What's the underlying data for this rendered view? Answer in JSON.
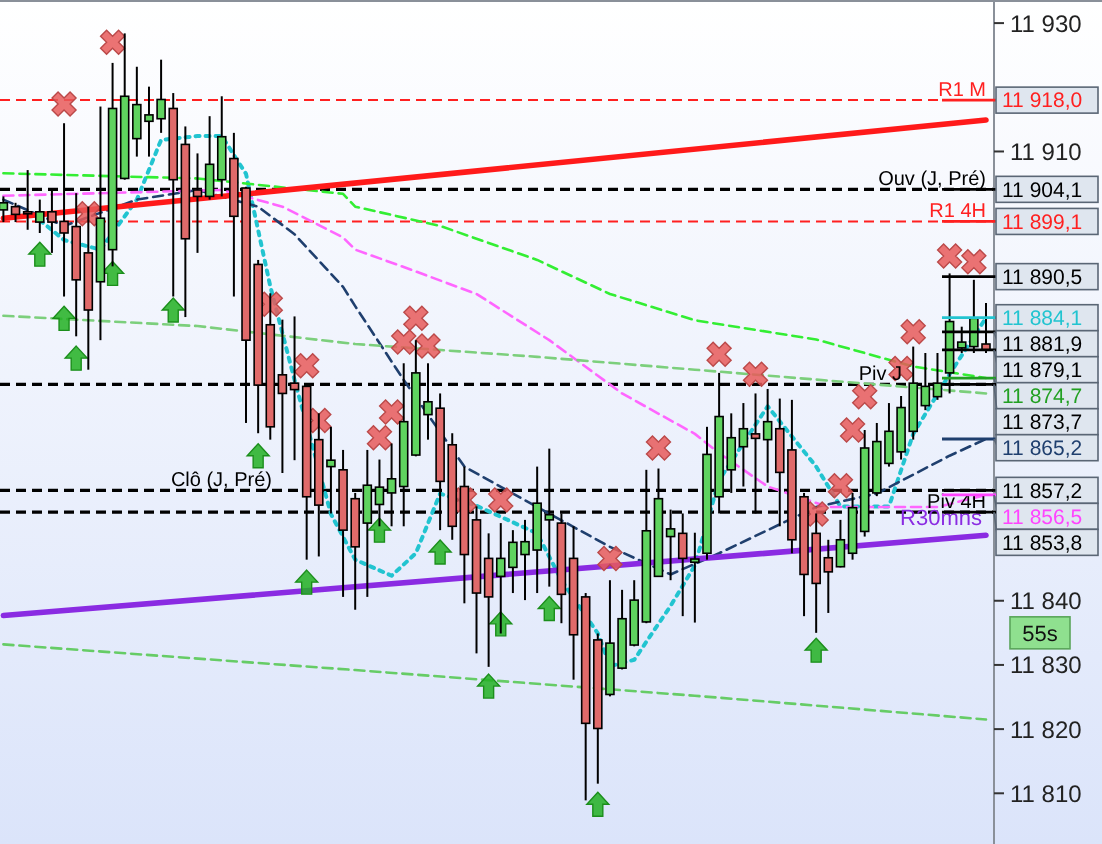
{
  "chart_data": {
    "type": "candlestick",
    "categories": [
      null,
      null,
      null,
      null,
      null,
      null,
      null,
      null,
      null,
      null,
      null,
      null,
      null,
      null,
      null,
      null,
      null,
      null,
      null,
      null,
      null,
      null,
      null,
      null,
      null,
      null,
      null,
      null,
      null,
      null,
      null,
      null,
      null,
      null,
      null,
      null,
      null,
      null,
      null,
      null,
      null,
      null,
      null,
      null,
      null,
      null,
      null,
      null,
      null,
      null,
      null,
      null,
      null,
      null,
      null,
      null,
      null,
      null,
      null,
      null,
      null,
      null,
      null,
      null,
      null,
      null,
      null,
      null,
      null,
      null,
      null,
      null,
      null,
      null,
      null,
      null,
      null,
      null,
      null,
      null,
      null,
      null
    ],
    "ohlc": [
      [
        11900.9,
        11903,
        11899,
        11902
      ],
      [
        11901.4,
        11902,
        11899,
        11900.2
      ],
      [
        11900.6,
        11907.1,
        11897.8,
        11900.4
      ],
      [
        11899,
        11902.5,
        11897.3,
        11900.6
      ],
      [
        11900.6,
        11904,
        11894.2,
        11899
      ],
      [
        11899.1,
        11914.4,
        11887.4,
        11897.3
      ],
      [
        11898.3,
        11903.5,
        11881.2,
        11890
      ],
      [
        11894.2,
        11901.4,
        11876,
        11885.3
      ],
      [
        11889.7,
        11917,
        11880.6,
        11899.6
      ],
      [
        11894.7,
        11923.8,
        11892.1,
        11916.7
      ],
      [
        11905.8,
        11928.4,
        11905.6,
        11918.6
      ],
      [
        11912,
        11923.2,
        11909.2,
        11917.3
      ],
      [
        11914.7,
        11920.1,
        11909.2,
        11915.7
      ],
      [
        11915.1,
        11924.3,
        11912.9,
        11918.1
      ],
      [
        11916.7,
        11919.1,
        11887.4,
        11905.6
      ],
      [
        11911.1,
        11913.9,
        11884.2,
        11896.4
      ],
      [
        11904,
        11909.7,
        11894.2,
        11903
      ],
      [
        11903,
        11915.5,
        11902.5,
        11908
      ],
      [
        11905.6,
        11918.6,
        11903,
        11912.3
      ],
      [
        11908.9,
        11912.9,
        11887.4,
        11899.9
      ],
      [
        11904.3,
        11904.5,
        11867.7,
        11880.6
      ],
      [
        11892.4,
        11893.1,
        11866.1,
        11873.6
      ],
      [
        11883,
        11887.9,
        11865.1,
        11867.1
      ],
      [
        11875.2,
        11883.8,
        11859.9,
        11872.3
      ],
      [
        11873.9,
        11884.3,
        11861.9,
        11872.9
      ],
      [
        11873.4,
        11873.9,
        11846.4,
        11856.2
      ],
      [
        11865.1,
        11869.2,
        11846.9,
        11854.9
      ],
      [
        11860.9,
        11867.1,
        11853.6,
        11861.9
      ],
      [
        11860.4,
        11863.5,
        11840.6,
        11851
      ],
      [
        11855.9,
        11856.8,
        11838.6,
        11848.4
      ],
      [
        11852.1,
        11863.5,
        11840.6,
        11858
      ],
      [
        11855,
        11862,
        11851.6,
        11857.7
      ],
      [
        11856.8,
        11864.5,
        11851.6,
        11859
      ],
      [
        11857.8,
        11877,
        11851.6,
        11867.9
      ],
      [
        11862.7,
        11880.6,
        11862.5,
        11875.5
      ],
      [
        11869,
        11877,
        11865.1,
        11871
      ],
      [
        11870,
        11872.3,
        11851,
        11858.6
      ],
      [
        11864.3,
        11866.1,
        11849.5,
        11851.6
      ],
      [
        11857.8,
        11860.9,
        11839.6,
        11847.2
      ],
      [
        11852.6,
        11854.7,
        11831.8,
        11841.2
      ],
      [
        11846.6,
        11850.5,
        11829.7,
        11840.6
      ],
      [
        11843.8,
        11852.1,
        11834.9,
        11846.6
      ],
      [
        11845.2,
        11851,
        11841.2,
        11849.1
      ],
      [
        11847.2,
        11852.6,
        11840.1,
        11849.2
      ],
      [
        11847.9,
        11860.9,
        11841.2,
        11855.2
      ],
      [
        11852.6,
        11863.7,
        11842.2,
        11853.4
      ],
      [
        11852.1,
        11853.6,
        11836.5,
        11841
      ],
      [
        11846.6,
        11851.6,
        11827.7,
        11834.7
      ],
      [
        11840.6,
        11841.2,
        11808.9,
        11820.9
      ],
      [
        11833.9,
        11834.9,
        11811.5,
        11820.1
      ],
      [
        11825.4,
        11843.2,
        11825.1,
        11833.4
      ],
      [
        11829.5,
        11841.7,
        11829.3,
        11837.2
      ],
      [
        11833.1,
        11843.2,
        11832.9,
        11840.1
      ],
      [
        11836.7,
        11860.4,
        11836.5,
        11850.9
      ],
      [
        11843.8,
        11860.6,
        11843.8,
        11855.9
      ],
      [
        11850,
        11854.2,
        11843.2,
        11851.2
      ],
      [
        11850.5,
        11853.6,
        11837.6,
        11846.6
      ],
      [
        11846,
        11850.6,
        11836.6,
        11846.5
      ],
      [
        11847.4,
        11867.1,
        11846.4,
        11862.8
      ],
      [
        11856.2,
        11875.5,
        11853.6,
        11868.7
      ],
      [
        11860.4,
        11869.2,
        11856.8,
        11865.4
      ],
      [
        11864,
        11870.8,
        11857.8,
        11866.8
      ],
      [
        11866,
        11872.3,
        11853.6,
        11865.3
      ],
      [
        11865.1,
        11873,
        11858.4,
        11867.9
      ],
      [
        11866.8,
        11871.5,
        11851.6,
        11860
      ],
      [
        11863.5,
        11871.3,
        11847.4,
        11849.5
      ],
      [
        11856.2,
        11856.8,
        11837.6,
        11844.1
      ],
      [
        11850.5,
        11853.6,
        11835,
        11842.7
      ],
      [
        11846.7,
        11849.5,
        11838.1,
        11844.5
      ],
      [
        11845.3,
        11852.6,
        11845.2,
        11849.5
      ],
      [
        11847.4,
        11856.8,
        11846.4,
        11854.5
      ],
      [
        11850.8,
        11866.6,
        11850,
        11863.8
      ],
      [
        11856.8,
        11867.7,
        11856.3,
        11864.8
      ],
      [
        11861.4,
        11870.8,
        11860.9,
        11866.4
      ],
      [
        11863.2,
        11871.9,
        11862,
        11870.1
      ],
      [
        11866.4,
        11879.6,
        11865.1,
        11873.9
      ],
      [
        11870.4,
        11878.6,
        11869.7,
        11873.4
      ],
      [
        11871.8,
        11878.6,
        11871.3,
        11873.9
      ],
      [
        11875.5,
        11891,
        11872.3,
        11883.5
      ],
      [
        11879.4,
        11882.7,
        11878.6,
        11880.3
      ],
      [
        11879.6,
        11890,
        11878.6,
        11884
      ],
      [
        11880,
        11886.4,
        11878.6,
        11879.1
      ]
    ],
    "series": [
      {
        "type": "line",
        "color": "#22c4d0",
        "line_style": "dotted",
        "values": [
          null,
          null,
          null,
          11899.3,
          null,
          11896.2,
          null,
          null,
          11894.7,
          null,
          null,
          11902.5,
          null,
          11911.8,
          null,
          null,
          11912.4,
          null,
          11912.4,
          null,
          11906.5,
          null,
          11889.0,
          null,
          11874.4,
          null,
          null,
          11853.5,
          null,
          11846.4,
          null,
          null,
          11843.9,
          null,
          11847.4,
          null,
          11856.7,
          null,
          null,
          11854.8,
          null,
          null,
          null,
          null,
          11850.5,
          null,
          11843.2,
          null,
          null,
          11834.9,
          11829.8,
          null,
          11830.8,
          null,
          null,
          11839.2,
          null,
          11845.5,
          null,
          11858.8,
          null,
          null,
          null,
          11870.3,
          null,
          null,
          null,
          11860.9,
          null,
          11854.7,
          null,
          null,
          null,
          11854.7,
          null,
          11866.0,
          null,
          null,
          11875.3,
          null,
          null,
          11884.1
        ]
      },
      {
        "type": "line",
        "color": "#1f3f6e",
        "line_style": "dashed",
        "values": [
          11902.5,
          null,
          null,
          null,
          null,
          11898.4,
          null,
          null,
          null,
          null,
          null,
          11902.5,
          null,
          null,
          null,
          null,
          11904.0,
          null,
          null,
          null,
          null,
          11901.4,
          null,
          null,
          11897.1,
          null,
          null,
          null,
          11888.9,
          11885.9,
          null,
          null,
          null,
          11874.4,
          null,
          null,
          null,
          null,
          11860.9,
          null,
          null,
          null,
          null,
          null,
          11854.6,
          null,
          null,
          null,
          null,
          null,
          11848.4,
          null,
          null,
          null,
          null,
          11844.1,
          null,
          null,
          null,
          11847.4,
          null,
          null,
          null,
          null,
          null,
          null,
          null,
          11854.6,
          null,
          null,
          null,
          null,
          11856.7,
          null,
          null,
          null,
          null,
          null,
          11862.6,
          null,
          null,
          11865.2
        ]
      },
      {
        "type": "line",
        "color": "#ff66ff",
        "line_style": "dashed",
        "values": [
          11903.1,
          null,
          null,
          null,
          null,
          null,
          null,
          null,
          null,
          null,
          null,
          null,
          null,
          null,
          null,
          null,
          null,
          null,
          11904.0,
          null,
          null,
          null,
          null,
          11901.4,
          null,
          null,
          null,
          null,
          11896.6,
          11894.7,
          null,
          null,
          null,
          11892.0,
          null,
          null,
          null,
          null,
          null,
          11887.8,
          null,
          null,
          null,
          null,
          null,
          11880.6,
          null,
          null,
          null,
          null,
          null,
          11872.3,
          null,
          null,
          null,
          null,
          null,
          11866.0,
          null,
          11863.0,
          null,
          null,
          null,
          11857.8,
          null,
          null,
          null,
          null,
          11854.6,
          null,
          null,
          null,
          null,
          null,
          null,
          null,
          null,
          11854.6,
          null,
          null,
          null,
          11856.5
        ]
      },
      {
        "type": "line",
        "color": "#33ee33",
        "line_style": "dashed",
        "values": [
          11906.6,
          null,
          null,
          null,
          null,
          null,
          null,
          null,
          null,
          null,
          null,
          null,
          null,
          null,
          null,
          null,
          11905.8,
          null,
          null,
          null,
          null,
          null,
          null,
          null,
          null,
          null,
          null,
          null,
          11903.4,
          11901.4,
          null,
          null,
          null,
          null,
          null,
          null,
          11898.4,
          null,
          null,
          null,
          null,
          null,
          null,
          null,
          11893.1,
          null,
          null,
          null,
          null,
          null,
          11887.8,
          null,
          null,
          null,
          null,
          null,
          null,
          11883.7,
          null,
          null,
          null,
          null,
          null,
          null,
          null,
          null,
          null,
          11880.7,
          null,
          null,
          null,
          null,
          null,
          null,
          null,
          11876.5,
          null,
          null,
          null,
          null,
          null,
          11874.7
        ]
      },
      {
        "type": "line",
        "color": "#7ccf7c",
        "line_style": "dashed",
        "values": [
          11884.4,
          null,
          null,
          null,
          null,
          null,
          null,
          null,
          null,
          null,
          null,
          null,
          null,
          null,
          null,
          null,
          11882.8,
          null,
          null,
          null,
          null,
          null,
          null,
          null,
          null,
          null,
          null,
          null,
          null,
          11880.0,
          null,
          null,
          null,
          null,
          null,
          null,
          null,
          null,
          null,
          null,
          null,
          null,
          null,
          null,
          11878.0,
          null,
          null,
          null,
          null,
          null,
          null,
          null,
          null,
          null,
          null,
          null,
          null,
          11876.0,
          null,
          null,
          null,
          null,
          null,
          null,
          null,
          null,
          null,
          null,
          null,
          null,
          null,
          null,
          null,
          null,
          null,
          null,
          null,
          null,
          null,
          null,
          null,
          11872.3
        ]
      },
      {
        "type": "line",
        "color": "#66cc66",
        "line_style": "dashed",
        "values": [
          11833.2,
          null,
          null,
          null,
          null,
          null,
          null,
          null,
          null,
          null,
          null,
          null,
          null,
          null,
          null,
          null,
          null,
          null,
          null,
          null,
          null,
          null,
          null,
          null,
          null,
          null,
          null,
          null,
          null,
          11829.2,
          null,
          null,
          null,
          null,
          null,
          null,
          null,
          null,
          null,
          null,
          null,
          null,
          null,
          null,
          null,
          null,
          null,
          null,
          null,
          null,
          null,
          null,
          null,
          null,
          null,
          null,
          null,
          11825.2,
          null,
          null,
          null,
          null,
          null,
          null,
          null,
          null,
          null,
          null,
          null,
          null,
          null,
          null,
          null,
          null,
          null,
          null,
          null,
          null,
          null,
          null,
          null,
          11821.5
        ]
      },
      {
        "type": "line",
        "color": "#ff1a1a",
        "line_style": "solid",
        "values": [
          11899.6,
          null,
          null,
          null,
          null,
          null,
          null,
          null,
          null,
          null,
          null,
          null,
          null,
          null,
          null,
          null,
          null,
          null,
          null,
          null,
          null,
          null,
          null,
          null,
          null,
          null,
          null,
          null,
          null,
          null,
          null,
          null,
          null,
          null,
          null,
          null,
          null,
          null,
          null,
          null,
          null,
          null,
          null,
          null,
          null,
          null,
          null,
          null,
          null,
          null,
          null,
          null,
          null,
          null,
          null,
          null,
          null,
          null,
          null,
          null,
          null,
          null,
          null,
          null,
          null,
          null,
          null,
          null,
          null,
          null,
          null,
          null,
          null,
          null,
          null,
          null,
          null,
          null,
          null,
          null,
          null,
          11914.9
        ]
      },
      {
        "type": "line",
        "name": "R30mns",
        "color": "#8a2be2",
        "line_style": "solid",
        "values": [
          11837.7,
          null,
          null,
          null,
          null,
          null,
          null,
          null,
          null,
          null,
          null,
          null,
          null,
          null,
          null,
          null,
          null,
          null,
          null,
          null,
          null,
          null,
          null,
          null,
          null,
          null,
          null,
          null,
          null,
          null,
          null,
          null,
          null,
          null,
          null,
          null,
          null,
          null,
          null,
          null,
          null,
          null,
          null,
          null,
          null,
          null,
          null,
          null,
          null,
          null,
          null,
          null,
          null,
          null,
          null,
          null,
          null,
          null,
          null,
          null,
          null,
          null,
          null,
          null,
          null,
          null,
          null,
          null,
          null,
          null,
          null,
          null,
          null,
          null,
          null,
          null,
          null,
          null,
          null,
          null,
          null,
          11850.2
        ]
      },
      {
        "type": "scatter",
        "color": "#e85a5a",
        "marker": "cross",
        "values": [
          null,
          null,
          null,
          null,
          null,
          11917.4,
          null,
          11900.3,
          null,
          11927.0,
          null,
          null,
          null,
          null,
          null,
          null,
          null,
          null,
          null,
          null,
          null,
          null,
          11886.2,
          null,
          null,
          11876.6,
          11868.1,
          null,
          null,
          null,
          null,
          11865.4,
          11869.4,
          11880.3,
          11884.0,
          11879.7,
          null,
          null,
          11855.7,
          null,
          null,
          11855.7,
          null,
          null,
          null,
          null,
          null,
          null,
          null,
          null,
          11846.6,
          null,
          null,
          null,
          11863.8,
          null,
          null,
          null,
          null,
          11878.4,
          null,
          null,
          11875.3,
          null,
          null,
          null,
          null,
          11853.5,
          null,
          11857.9,
          11866.6,
          11871.8,
          null,
          null,
          11876.2,
          11881.9,
          null,
          null,
          11893.7,
          null,
          11892.8,
          null
        ]
      },
      {
        "type": "scatter",
        "color": "#22b022",
        "marker": "triangle",
        "values": [
          null,
          null,
          null,
          11894.0,
          null,
          11884.0,
          11877.8,
          null,
          null,
          11891.0,
          null,
          null,
          null,
          null,
          11885.3,
          null,
          null,
          null,
          null,
          null,
          null,
          11862.6,
          null,
          null,
          null,
          11842.9,
          null,
          null,
          null,
          null,
          null,
          11851.0,
          null,
          null,
          null,
          null,
          11847.6,
          null,
          null,
          null,
          11826.7,
          11836.4,
          null,
          null,
          null,
          11838.8,
          null,
          null,
          null,
          11808.3,
          null,
          null,
          null,
          null,
          null,
          null,
          null,
          null,
          null,
          null,
          null,
          null,
          null,
          null,
          null,
          null,
          null,
          11832.3,
          null,
          null,
          null,
          null,
          null,
          null,
          null,
          null,
          null,
          null,
          null,
          null,
          null,
          null
        ]
      }
    ],
    "ylim": [
      11802.1,
      11933.6
    ],
    "yticks": [
      {
        "value": 11930,
        "label": "11 930"
      },
      {
        "value": 11910,
        "label": "11 910"
      },
      {
        "value": 11840,
        "label": "11 840"
      },
      {
        "value": 11830,
        "label": "11 830"
      },
      {
        "value": 11820,
        "label": "11 820"
      },
      {
        "value": 11810,
        "label": "11 810"
      }
    ],
    "ref_lines": [
      {
        "axis": "y",
        "value": 11918.0,
        "label": "R1 M",
        "color": "#ff2020",
        "line_style": "dashed"
      },
      {
        "axis": "y",
        "value": 11904.1,
        "label": "Ouv (J, Pré)",
        "color": "#000000",
        "line_style": "dashed"
      },
      {
        "axis": "y",
        "value": 11899.1,
        "label": "R1 4H",
        "color": "#ff2020",
        "line_style": "dashed"
      },
      {
        "axis": "y",
        "value": 11873.7,
        "label": "Piv J",
        "color": "#000000",
        "line_style": "dashed"
      },
      {
        "axis": "y",
        "value": 11857.2,
        "label": "Clô (J, Pré)",
        "color": "#000000",
        "line_style": "dashed"
      },
      {
        "axis": "y",
        "value": 11853.8,
        "label": "Piv 4H",
        "color": "#000000",
        "line_style": "dashed"
      },
      {
        "axis": "y2",
        "value": 11918.0,
        "label": "11 918,0",
        "color": "#ff2020"
      },
      {
        "axis": "y2",
        "value": 11904.1,
        "label": "11 904,1",
        "color": "#000000"
      },
      {
        "axis": "y2",
        "value": 11899.1,
        "label": "11 899,1",
        "color": "#ff2020"
      },
      {
        "axis": "y2",
        "value": 11890.5,
        "label": "11 890,5",
        "color": "#000000"
      },
      {
        "axis": "y2",
        "value": 11884.1,
        "label": "11 884,1",
        "color": "#22c4d0"
      },
      {
        "axis": "y2",
        "value": 11881.9,
        "label": "11 881,9",
        "color": "#000000"
      },
      {
        "axis": "y2",
        "value": 11879.1,
        "label": "11 879,1",
        "color": "#000000"
      },
      {
        "axis": "y2",
        "value": 11874.7,
        "label": "11 874,7",
        "color": "#22a022"
      },
      {
        "axis": "y2",
        "value": 11873.7,
        "label": "11 873,7",
        "color": "#000000"
      },
      {
        "axis": "y2",
        "value": 11865.2,
        "label": "11 865,2",
        "color": "#1f3f6e"
      },
      {
        "axis": "y2",
        "value": 11857.2,
        "label": "11 857,2",
        "color": "#000000"
      },
      {
        "axis": "y2",
        "value": 11856.5,
        "label": "11 856,5",
        "color": "#ff44ff"
      },
      {
        "axis": "y2",
        "value": 11853.8,
        "label": "11 853,8",
        "color": "#000000"
      }
    ],
    "y2lim": [
      11802.1,
      11933.6
    ],
    "annotations": [
      "55s"
    ]
  }
}
